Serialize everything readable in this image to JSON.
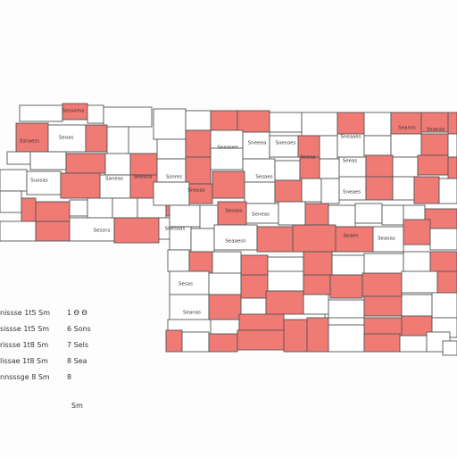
{
  "map": {
    "colors": {
      "highlight": "#f07a74",
      "base": "#ffffff",
      "border": "#555555"
    },
    "labels": [
      "Sessama",
      "Ssnaess",
      "Seoas",
      "Suosas",
      "Saneas",
      "Seeana",
      "Ssnres",
      "Snesas",
      "Seaasee",
      "Sneeea",
      "Soenses",
      "Seeaa",
      "Sneaaes",
      "Seeas",
      "Sneaes",
      "Seanss",
      "Seaeaa",
      "Sesaes",
      "Seoass",
      "Seneas",
      "Sessns",
      "Snesaas",
      "Seaaesn",
      "Seaen",
      "Seaoas",
      "Sesas",
      "Seanas"
    ]
  },
  "legend": {
    "rows": [
      {
        "label": "nissse 1t5 Sm",
        "value": "1 Ɵ Ɵ"
      },
      {
        "label": "sissse 1t5 Sm",
        "value": "6 Sons"
      },
      {
        "label": "rissse 1t8 Sm",
        "value": "7 Sels"
      },
      {
        "label": "lissae 1t8 Sm",
        "value": "8 Sea"
      },
      {
        "label": "nnsssge 8 Sm",
        "value": "8"
      }
    ],
    "footer": "Sm"
  }
}
